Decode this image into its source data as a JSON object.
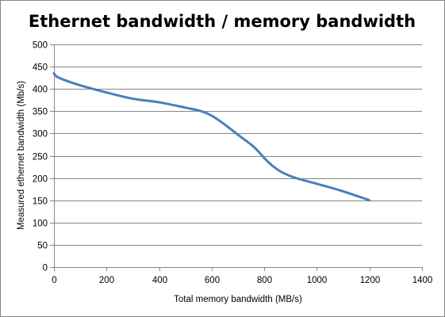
{
  "chart_data": {
    "type": "line",
    "title": "Ethernet bandwidth / memory bandwidth",
    "xlabel": "Total memory  bandwidth (MB/s)",
    "ylabel": "Measured ethernet bandwidth (Mb/s)",
    "xlim": [
      0,
      1400
    ],
    "ylim": [
      0,
      500
    ],
    "xticks": [
      0,
      200,
      400,
      600,
      800,
      1000,
      1200,
      1400
    ],
    "yticks": [
      0,
      50,
      100,
      150,
      200,
      250,
      300,
      350,
      400,
      450,
      500
    ],
    "grid": "horizontal",
    "legend": "none",
    "series_color": "#4a7ebb",
    "series": [
      {
        "x": [
          0,
          10,
          40,
          100,
          200,
          300,
          400,
          500,
          560,
          600,
          650,
          700,
          760,
          800,
          830,
          870,
          920,
          1000,
          1100,
          1200
        ],
        "values": [
          435,
          428,
          420,
          408,
          392,
          378,
          370,
          358,
          350,
          340,
          320,
          297,
          270,
          245,
          228,
          212,
          200,
          187,
          170,
          150
        ]
      }
    ]
  }
}
